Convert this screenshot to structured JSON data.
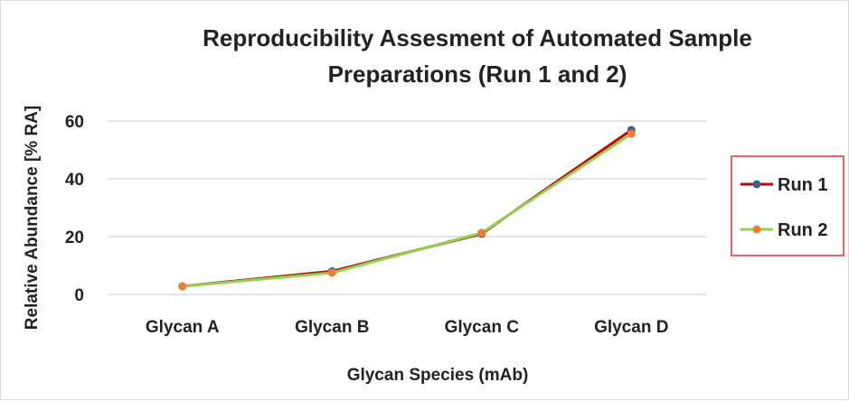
{
  "chart_data": {
    "type": "line",
    "title": "Reproducibility Assesment of Automated Sample Preparations (Run 1 and 2)",
    "title_lines": [
      "Reproducibility Assesment of Automated Sample",
      "Preparations (Run 1 and 2)"
    ],
    "xlabel": "Glycan Species (mAb)",
    "ylabel": "Relative Abundance [% RA]",
    "categories": [
      "Glycan A",
      "Glycan B",
      "Glycan C",
      "Glycan D"
    ],
    "ylim": [
      0,
      60
    ],
    "yticks": [
      0,
      20,
      40,
      60
    ],
    "grid": true,
    "legend_placement": "right",
    "legend_border_color": "#e03030",
    "series": [
      {
        "name": "Run 1",
        "values": [
          2.8,
          8.0,
          21.0,
          56.9
        ],
        "line_color": "#c00000",
        "marker_color": "#3a5f8f"
      },
      {
        "name": "Run 2",
        "values": [
          2.8,
          7.5,
          21.3,
          55.6
        ],
        "line_color": "#92d050",
        "marker_color": "#ed7d31"
      }
    ]
  }
}
